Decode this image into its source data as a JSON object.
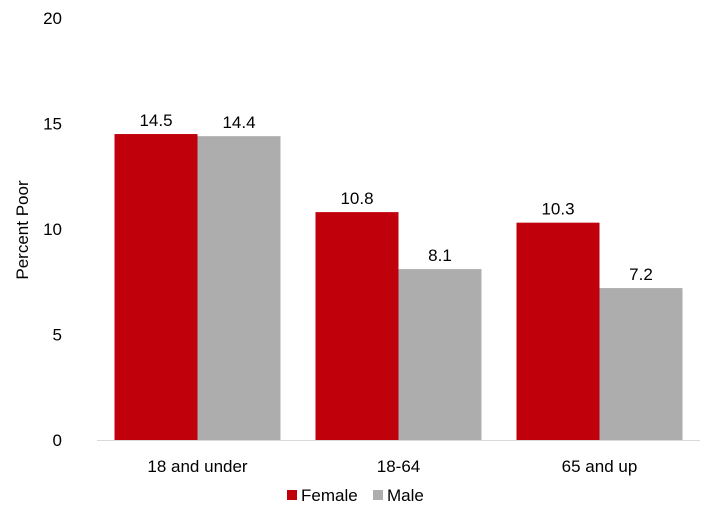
{
  "chart_data": {
    "type": "bar",
    "title": "",
    "xlabel": "",
    "ylabel": "Percent Poor",
    "ylim": [
      0,
      20
    ],
    "yticks": [
      0,
      5,
      10,
      15,
      20
    ],
    "grid": false,
    "legend_position": "bottom",
    "categories": [
      "18 and under",
      "18-64",
      "65 and up"
    ],
    "series": [
      {
        "name": "Female",
        "color": "#C0000B",
        "values": [
          14.5,
          10.8,
          10.3
        ]
      },
      {
        "name": "Male",
        "color": "#ADADAD",
        "values": [
          14.4,
          8.1,
          7.2
        ]
      }
    ]
  }
}
